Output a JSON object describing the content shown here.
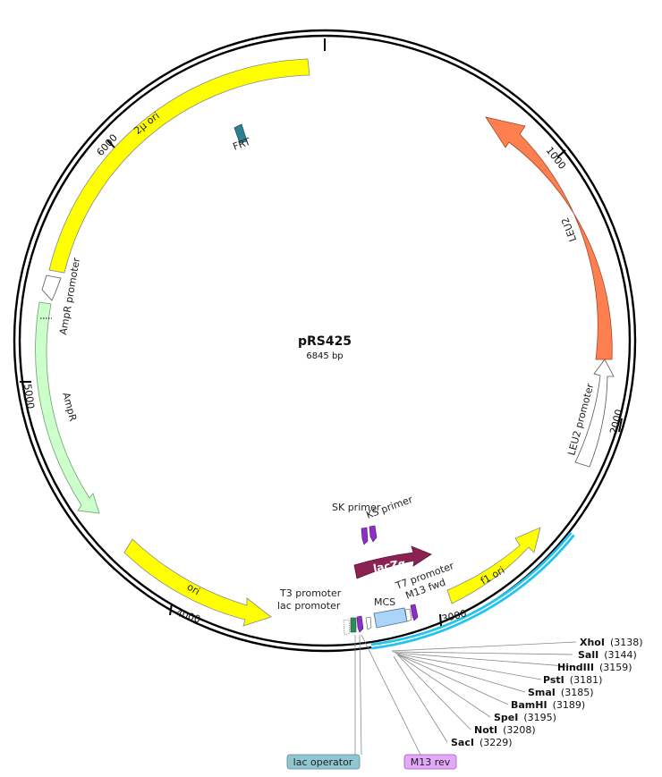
{
  "plasmid": {
    "name": "pRS425",
    "length_label": "6845 bp"
  },
  "ticks": [
    "1000",
    "2000",
    "3000",
    "4000",
    "5000",
    "6000"
  ],
  "features": {
    "frt": {
      "name": "FRT",
      "color": "#2e7f8f"
    },
    "two_micron_ori": {
      "name": "2µ ori",
      "color": "#ffff00"
    },
    "leu2": {
      "name": "LEU2",
      "color": "#ff7f50"
    },
    "leu2_promoter": {
      "name": "LEU2 promoter",
      "color": "#ffffff"
    },
    "ampr_promoter": {
      "name": "AmpR promoter",
      "color": "#ffffff"
    },
    "ampr": {
      "name": "AmpR",
      "color": "#ccffcc"
    },
    "ori": {
      "name": "ori",
      "color": "#ffff00"
    },
    "f1_ori": {
      "name": "f1 ori",
      "color": "#ffff00"
    },
    "lacz_alpha": {
      "name": "lacZα",
      "color": "#8b2252"
    },
    "mcs": {
      "name": "MCS",
      "color": "#aad4f8"
    },
    "t7_promoter": {
      "name": "T7 promoter"
    },
    "m13_fwd": {
      "name": "M13 fwd"
    },
    "t3_promoter": {
      "name": "T3 promoter"
    },
    "lac_promoter": {
      "name": "lac promoter"
    },
    "sk_primer": {
      "name": "SK primer"
    },
    "ks_primer": {
      "name": "KS primer"
    },
    "lac_operator": {
      "name": "lac operator",
      "color": "#8fc6d2"
    },
    "m13_rev": {
      "name": "M13 rev",
      "color": "#e3a8f7"
    }
  },
  "restriction_sites": [
    {
      "name": "XhoI",
      "pos": "(3138)"
    },
    {
      "name": "SalI",
      "pos": "(3144)"
    },
    {
      "name": "HindIII",
      "pos": "(3159)"
    },
    {
      "name": "PstI",
      "pos": "(3181)"
    },
    {
      "name": "SmaI",
      "pos": "(3185)"
    },
    {
      "name": "BamHI",
      "pos": "(3189)"
    },
    {
      "name": "SpeI",
      "pos": "(3195)"
    },
    {
      "name": "NotI",
      "pos": "(3208)"
    },
    {
      "name": "SacI",
      "pos": "(3229)"
    }
  ],
  "colors": {
    "backbone": "#000000",
    "mcs_region": "#22c3ef",
    "primer": "#8b2fc9"
  }
}
